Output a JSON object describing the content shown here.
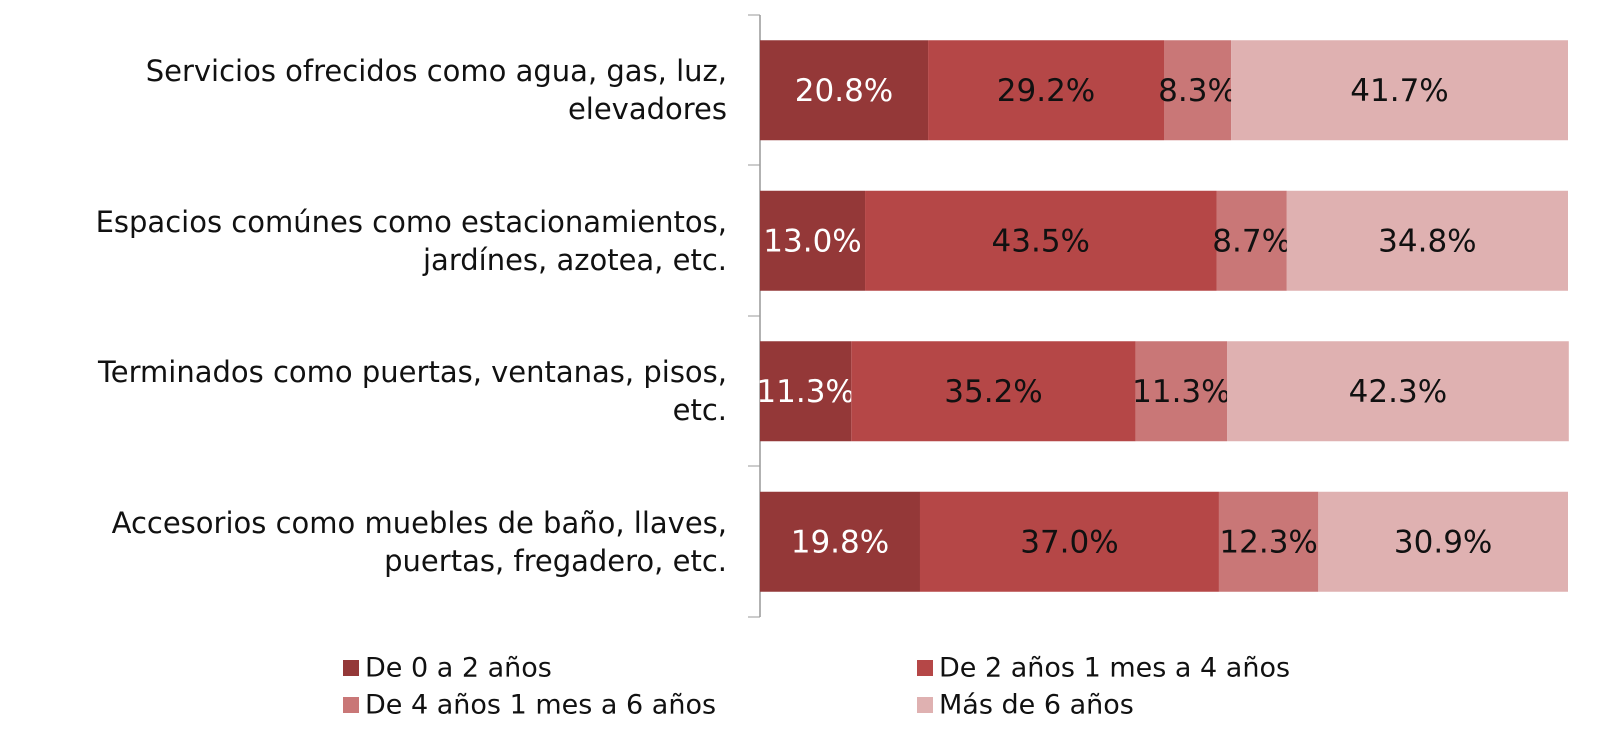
{
  "chart_data": {
    "type": "stacked_bar_horizontal",
    "categories": [
      "Servicios ofrecidos como agua, gas, luz,\nelevadores",
      "Espacios comúnes  como estacionamientos,\njardínes, azotea, etc.",
      "Terminados como puertas, ventanas, pisos,\netc.",
      "Accesorios como muebles de baño, llaves,\npuertas, fregadero, etc."
    ],
    "series": [
      {
        "name": "De 0 a 2 años",
        "color": "#943838",
        "values": [
          20.8,
          13.0,
          11.3,
          19.8
        ],
        "value_labels": [
          "20.8%",
          "13.0%",
          "11.3%",
          "19.8%"
        ]
      },
      {
        "name": "De 2 años 1 mes a 4 años",
        "color": "#b54747",
        "values": [
          29.2,
          43.5,
          35.2,
          37.0
        ],
        "value_labels": [
          "29.2%",
          "43.5%",
          "35.2%",
          "37.0%"
        ]
      },
      {
        "name": "De 4 años 1 mes a 6 años",
        "color": "#c97777",
        "values": [
          8.3,
          8.7,
          11.3,
          12.3
        ],
        "value_labels": [
          "8.3%",
          "8.7%",
          "11.3%",
          "12.3%"
        ]
      },
      {
        "name": "Más de 6 años",
        "color": "#dfb1b1",
        "values": [
          41.7,
          34.8,
          42.3,
          30.9
        ],
        "value_labels": [
          "41.7%",
          "34.8%",
          "42.3%",
          "30.9%"
        ]
      }
    ],
    "xlim": [
      0,
      100
    ],
    "legend": "bottom"
  }
}
